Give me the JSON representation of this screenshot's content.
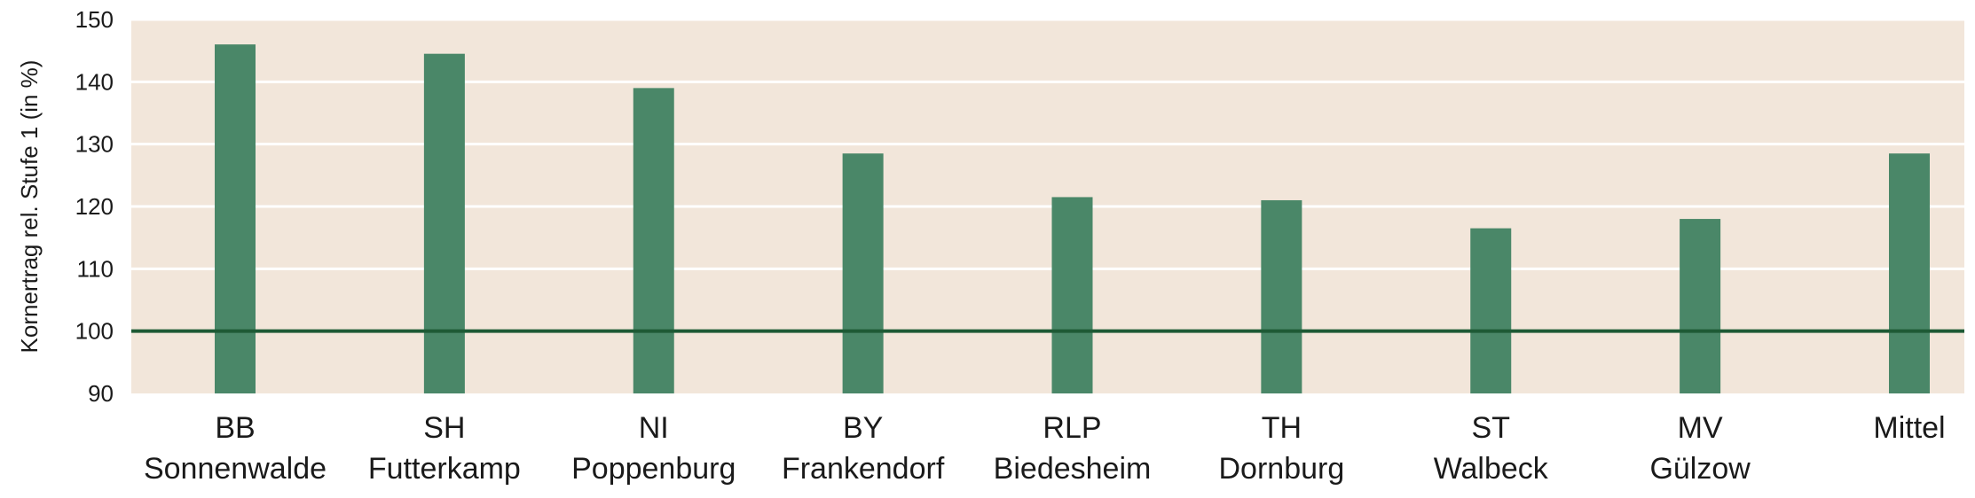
{
  "chart_data": {
    "type": "bar",
    "ylabel": "Kornertrag rel. Stufe 1 (in %)",
    "ylim": [
      90,
      150
    ],
    "yticks": [
      90,
      100,
      110,
      120,
      130,
      140,
      150
    ],
    "reference_line": 100,
    "grid": true,
    "categories": [
      {
        "line1": "BB",
        "line2": "Sonnenwalde"
      },
      {
        "line1": "SH",
        "line2": "Futterkamp"
      },
      {
        "line1": "NI",
        "line2": "Poppenburg"
      },
      {
        "line1": "BY",
        "line2": "Frankendorf"
      },
      {
        "line1": "RLP",
        "line2": "Biedesheim"
      },
      {
        "line1": "TH",
        "line2": "Dornburg"
      },
      {
        "line1": "ST",
        "line2": "Walbeck"
      },
      {
        "line1": "MV",
        "line2": "Gülzow"
      },
      {
        "line1": "Mittel",
        "line2": ""
      }
    ],
    "values": [
      146,
      144.5,
      139,
      128.5,
      121.5,
      121,
      116.5,
      118,
      128.5
    ],
    "colors": {
      "bar": "#4a8768",
      "plot_background": "#f2e6da",
      "grid": "#ffffff",
      "reference_line": "#1e5a35"
    }
  }
}
